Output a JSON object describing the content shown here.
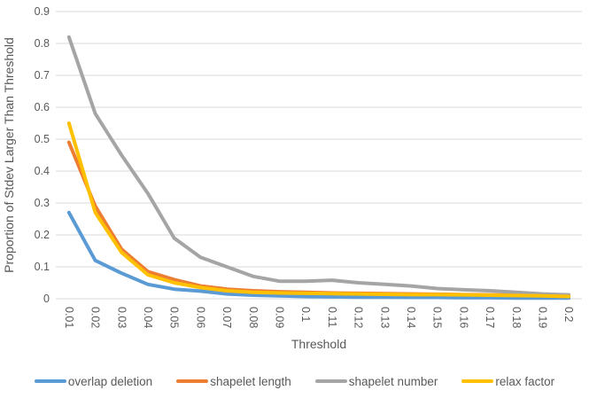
{
  "chart_data": {
    "type": "line",
    "title": "",
    "xlabel": "Threshold",
    "ylabel": "Proportion of Stdev Larger Than Threshold",
    "categories": [
      "0.01",
      "0.02",
      "0.03",
      "0.04",
      "0.05",
      "0.06",
      "0.07",
      "0.08",
      "0.09",
      "0.1",
      "0.11",
      "0.12",
      "0.13",
      "0.14",
      "0.15",
      "0.16",
      "0.17",
      "0.18",
      "0.19",
      "0.2"
    ],
    "y_ticks": [
      "0",
      "0.1",
      "0.2",
      "0.3",
      "0.4",
      "0.5",
      "0.6",
      "0.7",
      "0.8",
      "0.9"
    ],
    "ylim": [
      0,
      0.9
    ],
    "grid": "horizontal",
    "legend_position": "bottom",
    "x_tick_rotation_deg": 90,
    "series": [
      {
        "name": "overlap deletion",
        "color": "#5B9BD5",
        "values": [
          0.27,
          0.12,
          0.08,
          0.045,
          0.03,
          0.024,
          0.015,
          0.011,
          0.009,
          0.007,
          0.006,
          0.005,
          0.005,
          0.004,
          0.004,
          0.003,
          0.003,
          0.002,
          0.002,
          0.002
        ]
      },
      {
        "name": "shapelet length",
        "color": "#ED7D31",
        "values": [
          0.49,
          0.29,
          0.155,
          0.085,
          0.06,
          0.04,
          0.03,
          0.025,
          0.022,
          0.02,
          0.018,
          0.017,
          0.016,
          0.015,
          0.014,
          0.013,
          0.012,
          0.011,
          0.01,
          0.008
        ]
      },
      {
        "name": "shapelet number",
        "color": "#A5A5A5",
        "values": [
          0.82,
          0.58,
          0.45,
          0.33,
          0.19,
          0.13,
          0.1,
          0.07,
          0.055,
          0.055,
          0.058,
          0.05,
          0.045,
          0.04,
          0.032,
          0.028,
          0.025,
          0.02,
          0.015,
          0.012
        ]
      },
      {
        "name": "relax factor",
        "color": "#FFC000",
        "values": [
          0.55,
          0.27,
          0.145,
          0.075,
          0.05,
          0.035,
          0.025,
          0.02,
          0.018,
          0.017,
          0.016,
          0.015,
          0.014,
          0.013,
          0.013,
          0.012,
          0.011,
          0.01,
          0.009,
          0.007
        ]
      }
    ],
    "colors": {
      "text": "#595959",
      "gridline": "#D9D9D9",
      "axis_line": "#D9D9D9"
    }
  }
}
